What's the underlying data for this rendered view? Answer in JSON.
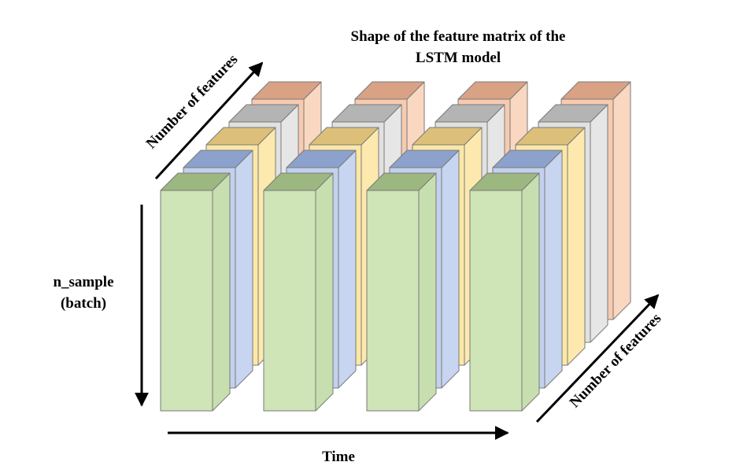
{
  "title": {
    "line1": "Shape of the feature matrix of the",
    "line2": "LSTM model"
  },
  "labels": {
    "features_top": "Number of features",
    "features_right": "Number of features",
    "n_sample_line1": "n_sample",
    "n_sample_line2": "(batch)",
    "time": "Time"
  },
  "layers": [
    {
      "name": "feature-5",
      "front": "#f6cbb0",
      "top": "#d9a285",
      "side": "#f9d7c0"
    },
    {
      "name": "feature-4",
      "front": "#e1e1e1",
      "top": "#b4b4b4",
      "side": "#e6e6e6"
    },
    {
      "name": "feature-3",
      "front": "#fbe8a6",
      "top": "#dcc07a",
      "side": "#fde9ad"
    },
    {
      "name": "feature-2",
      "front": "#c3d1ee",
      "top": "#8ca2cc",
      "side": "#c7d5f0"
    },
    {
      "name": "feature-1",
      "front": "#cfe4b7",
      "top": "#9db781",
      "side": "#c7dfaf"
    }
  ],
  "time_steps": 4,
  "colors": {
    "edge": "#7a7a7a",
    "arrow": "#000000"
  }
}
